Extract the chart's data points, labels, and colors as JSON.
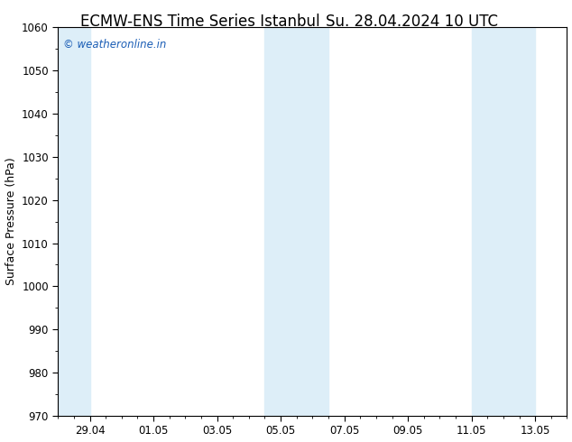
{
  "title_left": "ECMW-ENS Time Series Istanbul",
  "title_right": "Su. 28.04.2024 10 UTC",
  "ylabel": "Surface Pressure (hPa)",
  "ylim": [
    970,
    1060
  ],
  "yticks": [
    970,
    980,
    990,
    1000,
    1010,
    1020,
    1030,
    1040,
    1050,
    1060
  ],
  "xtick_labels": [
    "29.04",
    "01.05",
    "03.05",
    "05.05",
    "07.05",
    "09.05",
    "11.05",
    "13.05"
  ],
  "xtick_positions": [
    1,
    3,
    5,
    7,
    9,
    11,
    13,
    15
  ],
  "x_min": 0,
  "x_max": 16,
  "background_color": "#ffffff",
  "plot_bg_color": "#ffffff",
  "shaded_bands": [
    {
      "x_start": 0.0,
      "x_end": 1.0
    },
    {
      "x_start": 6.5,
      "x_end": 7.5
    },
    {
      "x_start": 7.5,
      "x_end": 8.5
    },
    {
      "x_start": 13.0,
      "x_end": 14.0
    },
    {
      "x_start": 14.0,
      "x_end": 15.0
    }
  ],
  "shade_color": "#ddeef8",
  "watermark_text": "© weatheronline.in",
  "watermark_color": "#1a5db5",
  "title_fontsize": 12,
  "axis_label_fontsize": 9,
  "tick_fontsize": 8.5
}
